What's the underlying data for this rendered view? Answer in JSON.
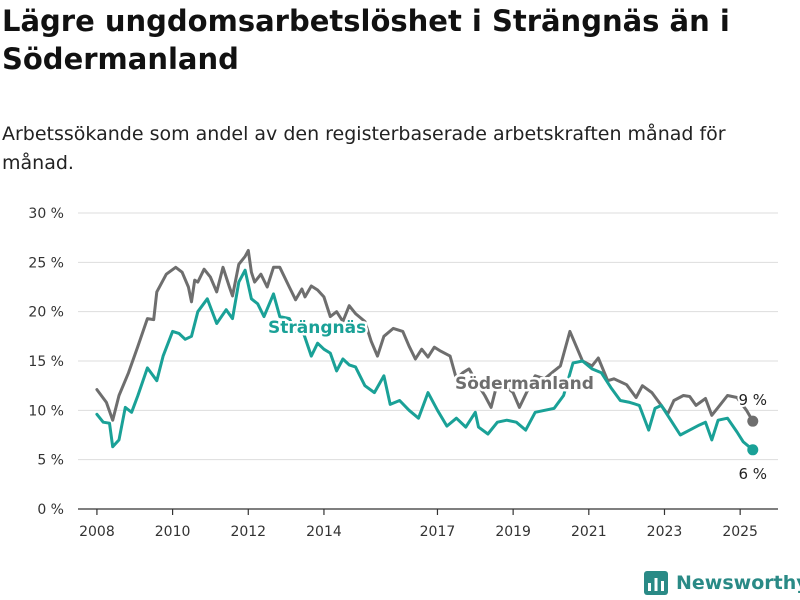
{
  "title": "Lägre ungdomsarbetslöshet i Strängnäs än i Södermanland",
  "subtitle": "Arbetssökande som andel av den registerbaserade arbetskraften månad för månad.",
  "brand": "Newsworthy",
  "colors": {
    "strangnas": "#1aa197",
    "sodermanland": "#6e6e6e",
    "grid": "#dddddd",
    "axis": "#333333",
    "brand": "#2a8a86"
  },
  "chart_data": {
    "type": "line",
    "y_ticks": [
      "0 %",
      "5 %",
      "10 %",
      "15 %",
      "20 %",
      "25 %",
      "30 %"
    ],
    "x_ticks": [
      "2008",
      "2010",
      "2012",
      "2014",
      "2017",
      "2019",
      "2021",
      "2023",
      "2025"
    ],
    "ylim": [
      0,
      30
    ],
    "xlim": [
      "2007-07",
      "2026-01"
    ],
    "grid": true,
    "series": [
      {
        "name": "Södermanland",
        "color": "#6e6e6e",
        "end_label": "9 %",
        "points": [
          [
            "2008-01",
            12.1
          ],
          [
            "2008-04",
            10.8
          ],
          [
            "2008-06",
            9.0
          ],
          [
            "2008-08",
            11.5
          ],
          [
            "2008-11",
            13.8
          ],
          [
            "2009-02",
            16.5
          ],
          [
            "2009-05",
            19.3
          ],
          [
            "2009-07",
            19.2
          ],
          [
            "2009-08",
            22.0
          ],
          [
            "2009-11",
            23.8
          ],
          [
            "2010-02",
            24.5
          ],
          [
            "2010-04",
            24.0
          ],
          [
            "2010-06",
            22.5
          ],
          [
            "2010-07",
            21.0
          ],
          [
            "2010-08",
            23.2
          ],
          [
            "2010-09",
            23.0
          ],
          [
            "2010-11",
            24.3
          ],
          [
            "2011-01",
            23.5
          ],
          [
            "2011-03",
            22.0
          ],
          [
            "2011-05",
            24.5
          ],
          [
            "2011-07",
            22.5
          ],
          [
            "2011-08",
            21.6
          ],
          [
            "2011-10",
            24.8
          ],
          [
            "2011-12",
            25.6
          ],
          [
            "2012-01",
            26.2
          ],
          [
            "2012-02",
            24.0
          ],
          [
            "2012-03",
            23.0
          ],
          [
            "2012-05",
            23.8
          ],
          [
            "2012-07",
            22.5
          ],
          [
            "2012-09",
            24.5
          ],
          [
            "2012-11",
            24.5
          ],
          [
            "2013-02",
            22.5
          ],
          [
            "2013-04",
            21.2
          ],
          [
            "2013-06",
            22.3
          ],
          [
            "2013-07",
            21.5
          ],
          [
            "2013-09",
            22.6
          ],
          [
            "2013-11",
            22.2
          ],
          [
            "2014-01",
            21.5
          ],
          [
            "2014-03",
            19.5
          ],
          [
            "2014-05",
            20.0
          ],
          [
            "2014-07",
            19.0
          ],
          [
            "2014-09",
            20.6
          ],
          [
            "2014-11",
            19.8
          ],
          [
            "2015-02",
            19.0
          ],
          [
            "2015-04",
            17.0
          ],
          [
            "2015-06",
            15.5
          ],
          [
            "2015-08",
            17.5
          ],
          [
            "2015-11",
            18.3
          ],
          [
            "2016-02",
            18.0
          ],
          [
            "2016-04",
            16.5
          ],
          [
            "2016-06",
            15.2
          ],
          [
            "2016-08",
            16.2
          ],
          [
            "2016-10",
            15.4
          ],
          [
            "2016-12",
            16.4
          ],
          [
            "2017-02",
            16.0
          ],
          [
            "2017-05",
            15.5
          ],
          [
            "2017-07",
            13.2
          ],
          [
            "2017-09",
            13.8
          ],
          [
            "2017-11",
            14.2
          ],
          [
            "2018-02",
            12.5
          ],
          [
            "2018-04",
            11.5
          ],
          [
            "2018-06",
            10.3
          ],
          [
            "2018-08",
            12.8
          ],
          [
            "2018-10",
            12.6
          ],
          [
            "2019-01",
            11.8
          ],
          [
            "2019-03",
            10.3
          ],
          [
            "2019-06",
            12.3
          ],
          [
            "2019-08",
            13.5
          ],
          [
            "2019-11",
            13.2
          ],
          [
            "2020-02",
            14.0
          ],
          [
            "2020-04",
            14.5
          ],
          [
            "2020-07",
            18.0
          ],
          [
            "2020-09",
            16.5
          ],
          [
            "2020-11",
            15.0
          ],
          [
            "2021-02",
            14.5
          ],
          [
            "2021-04",
            15.3
          ],
          [
            "2021-07",
            13.0
          ],
          [
            "2021-09",
            13.2
          ],
          [
            "2022-01",
            12.6
          ],
          [
            "2022-04",
            11.3
          ],
          [
            "2022-06",
            12.5
          ],
          [
            "2022-09",
            11.8
          ],
          [
            "2022-12",
            10.5
          ],
          [
            "2023-02",
            9.6
          ],
          [
            "2023-04",
            11.0
          ],
          [
            "2023-07",
            11.5
          ],
          [
            "2023-09",
            11.4
          ],
          [
            "2023-11",
            10.5
          ],
          [
            "2024-02",
            11.2
          ],
          [
            "2024-04",
            9.5
          ],
          [
            "2024-06",
            10.3
          ],
          [
            "2024-09",
            11.5
          ],
          [
            "2024-12",
            11.3
          ],
          [
            "2025-03",
            10.0
          ],
          [
            "2025-05",
            8.9
          ]
        ]
      },
      {
        "name": "Strängnäs",
        "color": "#1aa197",
        "end_label": "6 %",
        "points": [
          [
            "2008-01",
            9.6
          ],
          [
            "2008-03",
            8.8
          ],
          [
            "2008-05",
            8.7
          ],
          [
            "2008-06",
            6.3
          ],
          [
            "2008-08",
            7.0
          ],
          [
            "2008-10",
            10.3
          ],
          [
            "2008-12",
            9.8
          ],
          [
            "2009-02",
            11.5
          ],
          [
            "2009-05",
            14.3
          ],
          [
            "2009-08",
            13.0
          ],
          [
            "2009-10",
            15.5
          ],
          [
            "2010-01",
            18.0
          ],
          [
            "2010-03",
            17.8
          ],
          [
            "2010-05",
            17.2
          ],
          [
            "2010-07",
            17.5
          ],
          [
            "2010-09",
            20.0
          ],
          [
            "2010-12",
            21.3
          ],
          [
            "2011-03",
            18.8
          ],
          [
            "2011-06",
            20.2
          ],
          [
            "2011-08",
            19.3
          ],
          [
            "2011-10",
            23.0
          ],
          [
            "2011-12",
            24.2
          ],
          [
            "2012-02",
            21.3
          ],
          [
            "2012-04",
            20.8
          ],
          [
            "2012-06",
            19.5
          ],
          [
            "2012-09",
            21.8
          ],
          [
            "2012-11",
            19.5
          ],
          [
            "2013-02",
            19.3
          ],
          [
            "2013-04",
            18.0
          ],
          [
            "2013-06",
            18.3
          ],
          [
            "2013-09",
            15.5
          ],
          [
            "2013-11",
            16.8
          ],
          [
            "2014-01",
            16.2
          ],
          [
            "2014-03",
            15.8
          ],
          [
            "2014-05",
            14.0
          ],
          [
            "2014-07",
            15.2
          ],
          [
            "2014-09",
            14.6
          ],
          [
            "2014-11",
            14.4
          ],
          [
            "2015-02",
            12.5
          ],
          [
            "2015-05",
            11.8
          ],
          [
            "2015-08",
            13.5
          ],
          [
            "2015-10",
            10.6
          ],
          [
            "2016-01",
            11.0
          ],
          [
            "2016-04",
            10.0
          ],
          [
            "2016-07",
            9.2
          ],
          [
            "2016-10",
            11.8
          ],
          [
            "2017-01",
            10.0
          ],
          [
            "2017-04",
            8.4
          ],
          [
            "2017-07",
            9.2
          ],
          [
            "2017-10",
            8.3
          ],
          [
            "2018-01",
            9.8
          ],
          [
            "2018-02",
            8.3
          ],
          [
            "2018-05",
            7.6
          ],
          [
            "2018-08",
            8.8
          ],
          [
            "2018-11",
            9.0
          ],
          [
            "2019-02",
            8.8
          ],
          [
            "2019-05",
            8.0
          ],
          [
            "2019-08",
            9.8
          ],
          [
            "2019-11",
            10.0
          ],
          [
            "2020-02",
            10.2
          ],
          [
            "2020-05",
            11.5
          ],
          [
            "2020-08",
            14.8
          ],
          [
            "2020-11",
            15.0
          ],
          [
            "2021-02",
            14.2
          ],
          [
            "2021-05",
            13.8
          ],
          [
            "2021-08",
            12.3
          ],
          [
            "2021-11",
            11.0
          ],
          [
            "2022-02",
            10.8
          ],
          [
            "2022-05",
            10.5
          ],
          [
            "2022-08",
            8.0
          ],
          [
            "2022-10",
            10.2
          ],
          [
            "2022-12",
            10.5
          ],
          [
            "2023-03",
            9.0
          ],
          [
            "2023-06",
            7.5
          ],
          [
            "2023-09",
            8.0
          ],
          [
            "2023-12",
            8.5
          ],
          [
            "2024-02",
            8.8
          ],
          [
            "2024-04",
            7.0
          ],
          [
            "2024-06",
            9.0
          ],
          [
            "2024-09",
            9.2
          ],
          [
            "2024-12",
            7.8
          ],
          [
            "2025-02",
            6.8
          ],
          [
            "2025-05",
            6.0
          ]
        ]
      }
    ]
  }
}
